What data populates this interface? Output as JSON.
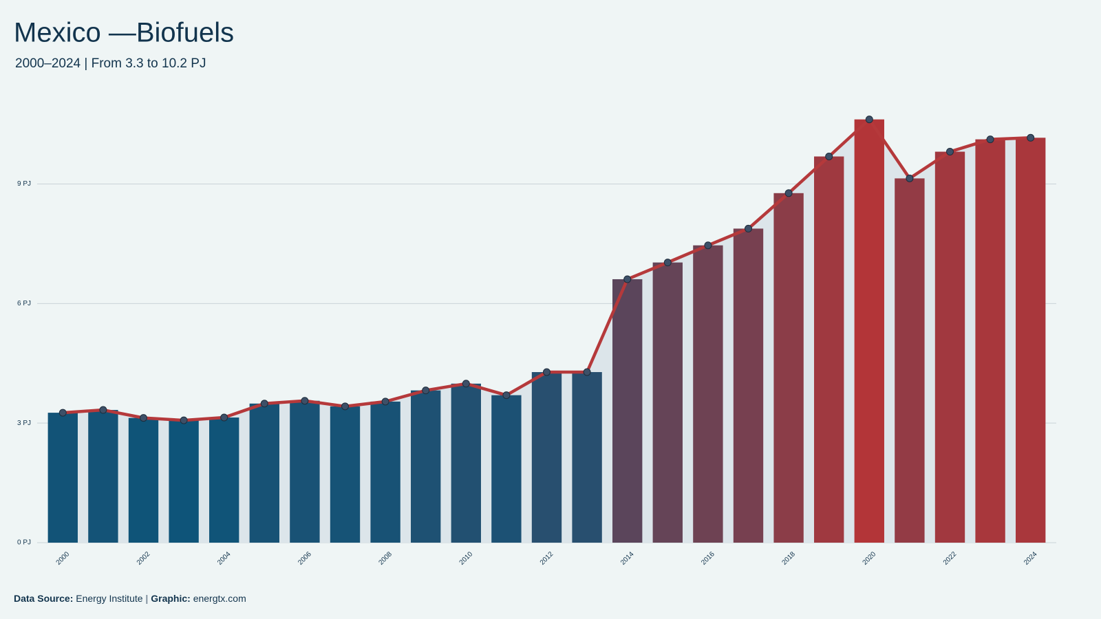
{
  "chart_data": {
    "type": "combo",
    "title": "Mexico —Biofuels",
    "subtitle": "2000–2024 | From 3.3 to 10.2 PJ",
    "x": [
      2000,
      2001,
      2002,
      2003,
      2004,
      2005,
      2006,
      2007,
      2008,
      2009,
      2010,
      2011,
      2012,
      2013,
      2014,
      2015,
      2016,
      2017,
      2018,
      2019,
      2020,
      2021,
      2022,
      2023,
      2024
    ],
    "values": [
      3.26,
      3.33,
      3.13,
      3.07,
      3.14,
      3.49,
      3.56,
      3.42,
      3.54,
      3.82,
      3.99,
      3.7,
      4.28,
      4.28,
      6.61,
      7.03,
      7.46,
      7.88,
      8.77,
      9.69,
      10.62,
      9.14,
      9.81,
      10.12,
      10.16
    ],
    "xlim": [
      1999.5,
      2024.5
    ],
    "xticks": [
      2000,
      2002,
      2004,
      2006,
      2008,
      2010,
      2012,
      2014,
      2016,
      2018,
      2020,
      2022,
      2024
    ],
    "ylim": [
      0,
      11.2
    ],
    "yticks": [
      {
        "value": 0,
        "label": "0 PJ"
      },
      {
        "value": 3,
        "label": "3 PJ"
      },
      {
        "value": 6,
        "label": "6 PJ"
      },
      {
        "value": 9,
        "label": "9 PJ"
      }
    ],
    "grid": true,
    "color_low": "#0e5479",
    "color_high": "#b33538",
    "line_color": "#b5393b",
    "area_color": "#dce5ea",
    "marker_color": "#3d5068",
    "footer": {
      "source_label": "Data Source:",
      "source": "Energy Institute",
      "separator": "|",
      "graphic_label": "Graphic:",
      "graphic": "energtx.com"
    }
  }
}
